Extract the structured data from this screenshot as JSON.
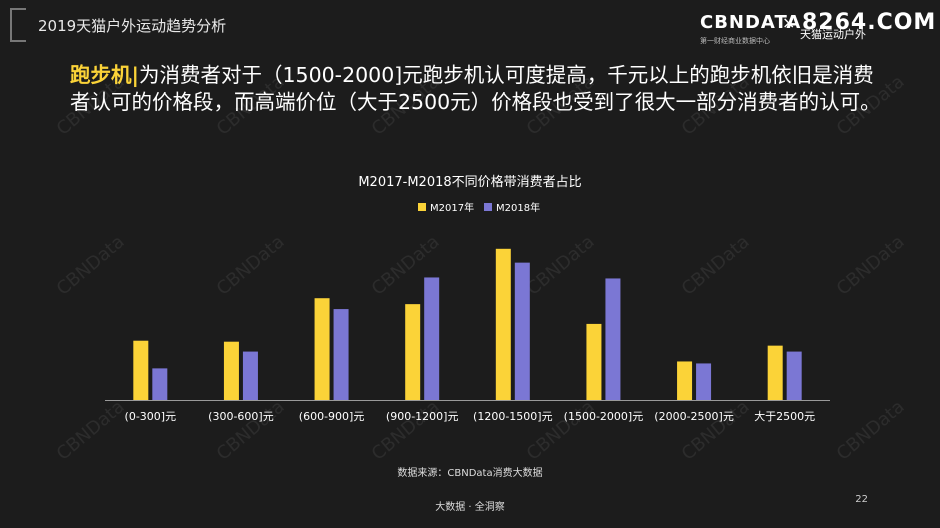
{
  "header": {
    "report_title": "2019天猫户外运动趋势分析",
    "logo_brand": "CBNDATA",
    "logo_tagline": "第一财经商业数据中心",
    "logo_times": "×",
    "logo_partner": "天猫运动户外",
    "watermark_site": "8264.COM"
  },
  "headline": {
    "keyword": "跑步机|",
    "text": "为消费者对于（1500-2000]元跑步机认可度提高，千元以上的跑步机依旧是消费者认可的价格段，而高端价位（大于2500元）价格段也受到了很大一部分消费者的认可。"
  },
  "watermark_text": "CBNData",
  "chart_data": {
    "type": "bar",
    "title": "M2017-M2018不同价格带消费者占比",
    "categories": [
      "(0-300]元",
      "(300-600]元",
      "(600-900]元",
      "(900-1200]元",
      "(1200-1500]元",
      "(1500-2000]元",
      "(2000-2500]元",
      "大于2500元"
    ],
    "series": [
      {
        "name": "M2017年",
        "color": "#fbd338",
        "values": [
          60,
          59,
          103,
          97,
          153,
          77,
          39,
          55
        ]
      },
      {
        "name": "M2018年",
        "color": "#7b77d4",
        "values": [
          32,
          49,
          92,
          124,
          139,
          123,
          37,
          49
        ]
      }
    ],
    "ylim": [
      0,
      170
    ],
    "grid": false,
    "legend": "top-center",
    "source": "数据来源：CBNData消费大数据"
  },
  "footer": {
    "center_text": "大数据 · 全洞察",
    "page_number": "22"
  }
}
